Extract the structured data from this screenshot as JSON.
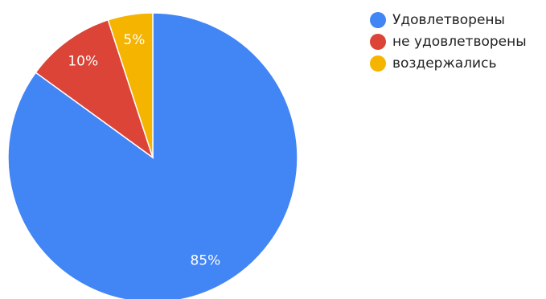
{
  "chart_data": {
    "type": "pie",
    "categories": [
      "Удовлетворены",
      "не удовлетворены",
      "воздержались"
    ],
    "values": [
      85,
      10,
      5
    ],
    "data_labels": [
      "85%",
      "10%",
      "5%"
    ],
    "colors": [
      "#4285f4",
      "#db4437",
      "#f4b400"
    ],
    "legend_position": "top-right",
    "start_angle": "top, clockwise"
  },
  "legend": {
    "items": [
      {
        "label": "Удовлетворены",
        "color": "#4285f4"
      },
      {
        "label": "не удовлетворены",
        "color": "#db4437"
      },
      {
        "label": "воздержались",
        "color": "#f4b400"
      }
    ]
  }
}
